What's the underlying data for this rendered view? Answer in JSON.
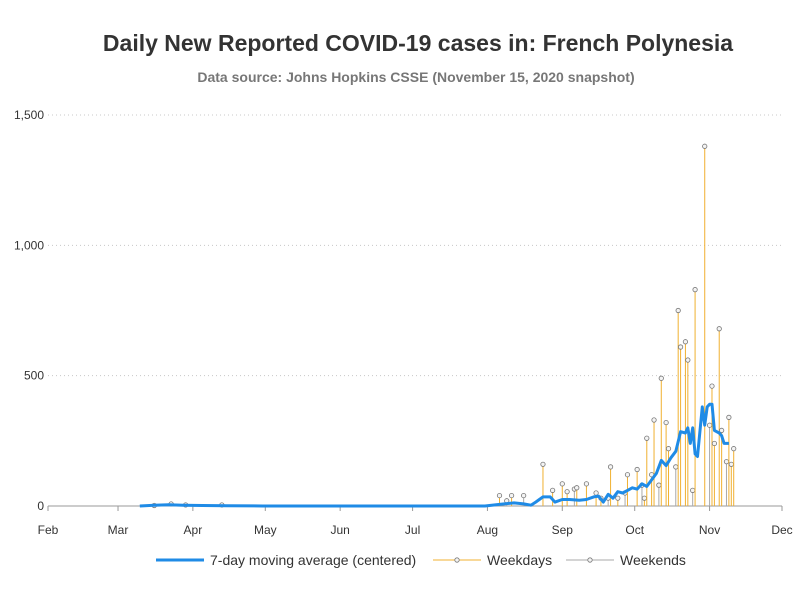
{
  "chart_data": {
    "type": "line",
    "title": "Daily New Reported COVID-19 cases in: French Polynesia",
    "subtitle": "Data source: Johns Hopkins CSSE (November 15, 2020 snapshot)",
    "xlabel": "",
    "ylabel": "",
    "x_range": [
      "2020-02-01",
      "2020-12-01"
    ],
    "ylim": [
      0,
      1500
    ],
    "y_ticks": [
      0,
      500,
      1000,
      1500
    ],
    "y_tick_labels": [
      "0",
      "500",
      "1,000",
      "1,500"
    ],
    "x_ticks": [
      {
        "date": "2020-02-01",
        "label": "Feb"
      },
      {
        "date": "2020-03-01",
        "label": "Mar"
      },
      {
        "date": "2020-04-01",
        "label": "Apr"
      },
      {
        "date": "2020-05-01",
        "label": "May"
      },
      {
        "date": "2020-06-01",
        "label": "Jun"
      },
      {
        "date": "2020-07-01",
        "label": "Jul"
      },
      {
        "date": "2020-08-01",
        "label": "Aug"
      },
      {
        "date": "2020-09-01",
        "label": "Sep"
      },
      {
        "date": "2020-10-01",
        "label": "Oct"
      },
      {
        "date": "2020-11-01",
        "label": "Nov"
      },
      {
        "date": "2020-12-01",
        "label": "Dec"
      }
    ],
    "grid": "horizontal dotted",
    "legend_position": "bottom",
    "series": [
      {
        "name": "7-day moving average (centered)",
        "kind": "line",
        "color": "#1f8be6",
        "points": [
          [
            "2020-03-10",
            0
          ],
          [
            "2020-03-16",
            3
          ],
          [
            "2020-03-22",
            5
          ],
          [
            "2020-03-28",
            3
          ],
          [
            "2020-04-05",
            2
          ],
          [
            "2020-04-15",
            1
          ],
          [
            "2020-04-30",
            0
          ],
          [
            "2020-07-31",
            0
          ],
          [
            "2020-08-06",
            6
          ],
          [
            "2020-08-12",
            12
          ],
          [
            "2020-08-16",
            8
          ],
          [
            "2020-08-19",
            3
          ],
          [
            "2020-08-21",
            15
          ],
          [
            "2020-08-24",
            35
          ],
          [
            "2020-08-27",
            35
          ],
          [
            "2020-08-29",
            15
          ],
          [
            "2020-09-01",
            25
          ],
          [
            "2020-09-04",
            25
          ],
          [
            "2020-09-08",
            22
          ],
          [
            "2020-09-11",
            25
          ],
          [
            "2020-09-14",
            35
          ],
          [
            "2020-09-16",
            38
          ],
          [
            "2020-09-18",
            15
          ],
          [
            "2020-09-20",
            45
          ],
          [
            "2020-09-22",
            30
          ],
          [
            "2020-09-24",
            55
          ],
          [
            "2020-09-26",
            50
          ],
          [
            "2020-09-28",
            60
          ],
          [
            "2020-09-30",
            70
          ],
          [
            "2020-10-02",
            65
          ],
          [
            "2020-10-04",
            85
          ],
          [
            "2020-10-06",
            75
          ],
          [
            "2020-10-08",
            100
          ],
          [
            "2020-10-10",
            125
          ],
          [
            "2020-10-12",
            175
          ],
          [
            "2020-10-14",
            155
          ],
          [
            "2020-10-16",
            185
          ],
          [
            "2020-10-18",
            210
          ],
          [
            "2020-10-20",
            285
          ],
          [
            "2020-10-22",
            280
          ],
          [
            "2020-10-23",
            300
          ],
          [
            "2020-10-24",
            240
          ],
          [
            "2020-10-25",
            300
          ],
          [
            "2020-10-26",
            200
          ],
          [
            "2020-10-27",
            190
          ],
          [
            "2020-10-29",
            380
          ],
          [
            "2020-10-30",
            310
          ],
          [
            "2020-10-31",
            380
          ],
          [
            "2020-11-01",
            390
          ],
          [
            "2020-11-02",
            390
          ],
          [
            "2020-11-03",
            290
          ],
          [
            "2020-11-05",
            280
          ],
          [
            "2020-11-06",
            270
          ],
          [
            "2020-11-07",
            240
          ],
          [
            "2020-11-09",
            240
          ]
        ]
      },
      {
        "name": "Weekdays",
        "kind": "needle",
        "color": "#f0b030",
        "points": [
          [
            "2020-08-06",
            40
          ],
          [
            "2020-08-11",
            40
          ],
          [
            "2020-08-24",
            160
          ],
          [
            "2020-08-28",
            60
          ],
          [
            "2020-09-01",
            85
          ],
          [
            "2020-09-03",
            55
          ],
          [
            "2020-09-07",
            70
          ],
          [
            "2020-09-11",
            85
          ],
          [
            "2020-09-15",
            50
          ],
          [
            "2020-09-17",
            30
          ],
          [
            "2020-09-21",
            150
          ],
          [
            "2020-09-24",
            30
          ],
          [
            "2020-09-28",
            120
          ],
          [
            "2020-10-02",
            140
          ],
          [
            "2020-10-05",
            30
          ],
          [
            "2020-10-06",
            260
          ],
          [
            "2020-10-08",
            120
          ],
          [
            "2020-10-09",
            330
          ],
          [
            "2020-10-12",
            490
          ],
          [
            "2020-10-14",
            320
          ],
          [
            "2020-10-15",
            220
          ],
          [
            "2020-10-19",
            750
          ],
          [
            "2020-10-20",
            610
          ],
          [
            "2020-10-22",
            630
          ],
          [
            "2020-10-23",
            560
          ],
          [
            "2020-10-26",
            830
          ],
          [
            "2020-10-30",
            1380
          ],
          [
            "2020-11-02",
            460
          ],
          [
            "2020-11-03",
            240
          ],
          [
            "2020-11-05",
            680
          ],
          [
            "2020-11-06",
            290
          ],
          [
            "2020-11-09",
            340
          ],
          [
            "2020-11-10",
            160
          ],
          [
            "2020-11-11",
            220
          ]
        ]
      },
      {
        "name": "Weekends",
        "kind": "needle",
        "color": "#aaaaaa",
        "points": [
          [
            "2020-03-16",
            2
          ],
          [
            "2020-03-23",
            8
          ],
          [
            "2020-03-29",
            4
          ],
          [
            "2020-04-13",
            4
          ],
          [
            "2020-08-09",
            20
          ],
          [
            "2020-08-16",
            40
          ],
          [
            "2020-09-06",
            65
          ],
          [
            "2020-09-20",
            30
          ],
          [
            "2020-09-27",
            50
          ],
          [
            "2020-10-04",
            80
          ],
          [
            "2020-10-11",
            80
          ],
          [
            "2020-10-18",
            150
          ],
          [
            "2020-10-25",
            60
          ],
          [
            "2020-11-01",
            310
          ],
          [
            "2020-11-08",
            170
          ]
        ]
      }
    ]
  }
}
